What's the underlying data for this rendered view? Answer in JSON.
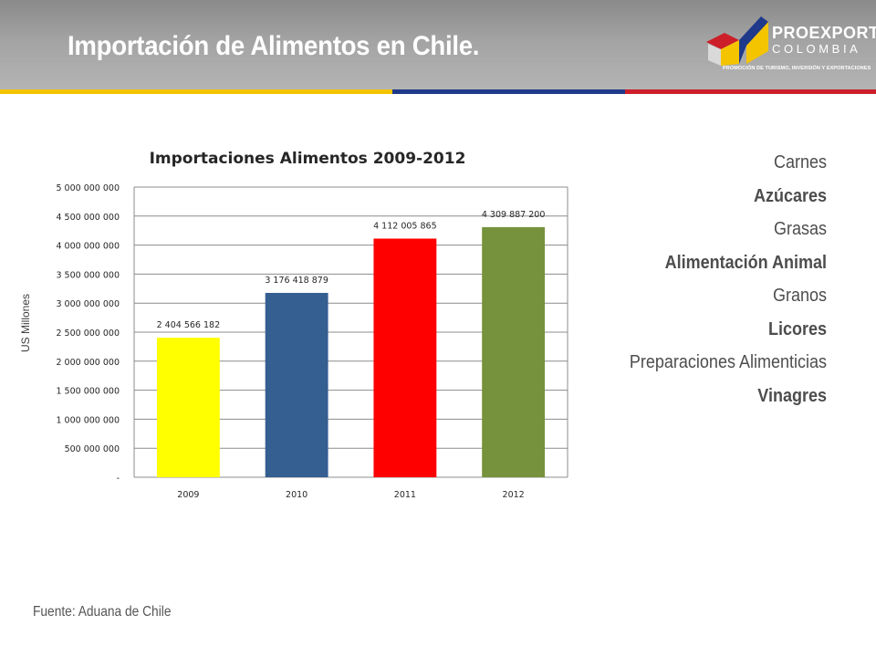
{
  "slide": {
    "title": "Importación de Alimentos en Chile.",
    "source": "Fuente: Aduana de Chile"
  },
  "logo": {
    "name": "PROEXPORT",
    "sub": "COLOMBIA",
    "tagline": "PROMOCIÓN DE TURISMO, INVERSIÓN Y EXPORTACIONES"
  },
  "header_stripe_colors": [
    "#f5c400",
    "#1f3a8a",
    "#cc1f2a"
  ],
  "products": [
    {
      "label": "Carnes",
      "bold": false
    },
    {
      "label": "Azúcares",
      "bold": true
    },
    {
      "label": "Grasas",
      "bold": false
    },
    {
      "label": "Alimentación Animal",
      "bold": true
    },
    {
      "label": "Granos",
      "bold": false
    },
    {
      "label": "Licores",
      "bold": true
    },
    {
      "label": "Preparaciones Alimenticias",
      "bold": false
    },
    {
      "label": "Vinagres",
      "bold": true
    }
  ],
  "chart_data": {
    "type": "bar",
    "title": "Importaciones Alimentos 2009-2012",
    "ylabel": "US Millones",
    "xlabel": "",
    "categories": [
      "2009",
      "2010",
      "2011",
      "2012"
    ],
    "values": [
      2404566182,
      3176418879,
      4112005865,
      4309887200
    ],
    "value_labels": [
      "2 404 566 182",
      "3 176 418 879",
      "4 112 005 865",
      "4 309 887 200"
    ],
    "bar_colors": [
      "#ffff00",
      "#355e91",
      "#ff0000",
      "#76923c"
    ],
    "ylim": [
      0,
      5000000000
    ],
    "yticks": [
      0,
      500000000,
      1000000000,
      1500000000,
      2000000000,
      2500000000,
      3000000000,
      3500000000,
      4000000000,
      4500000000,
      5000000000
    ],
    "ytick_labels": [
      "-",
      "500 000 000",
      "1 000 000 000",
      "1 500 000 000",
      "2 000 000 000",
      "2 500 000 000",
      "3 000 000 000",
      "3 500 000 000",
      "4 000 000 000",
      "4 500 000 000",
      "5 000 000 000"
    ],
    "grid": true,
    "legend": "none"
  }
}
